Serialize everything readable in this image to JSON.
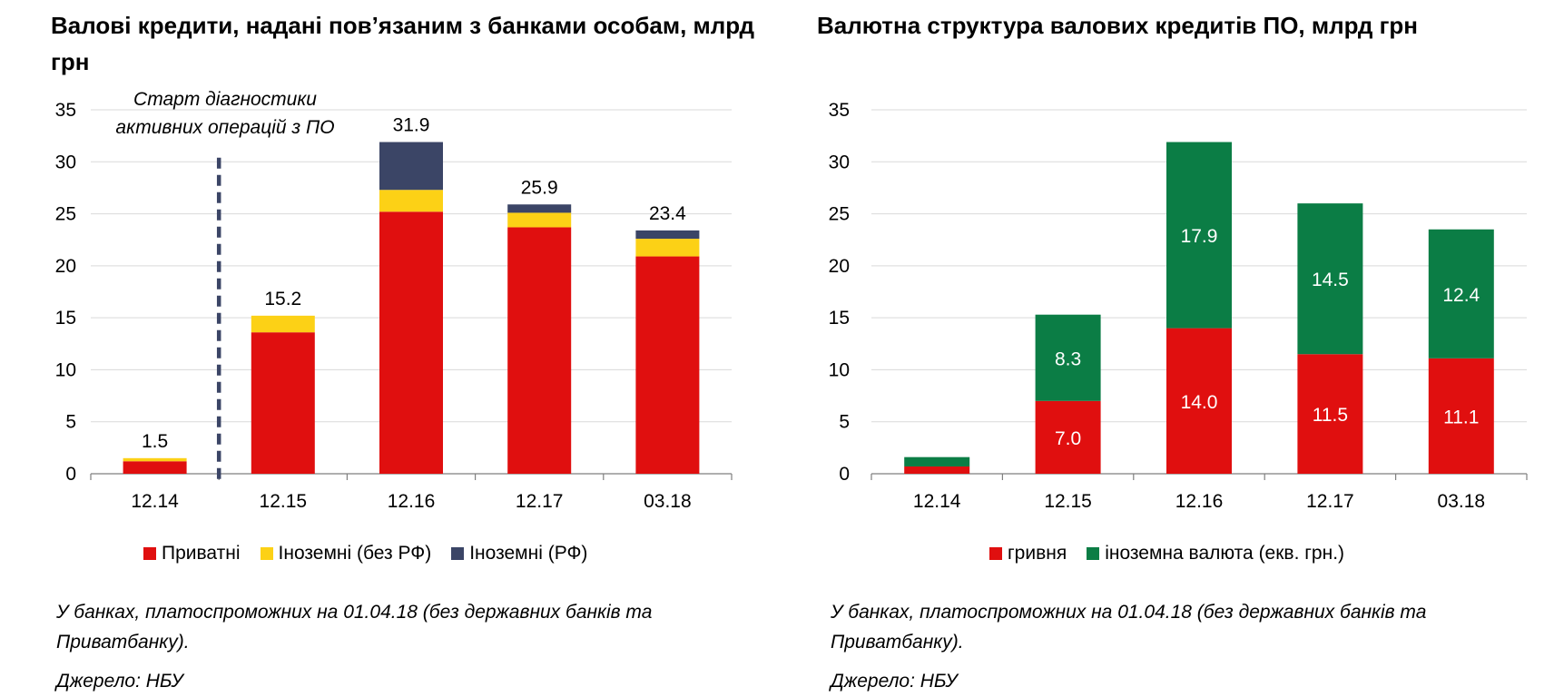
{
  "colors": {
    "red": "#e00f0f",
    "yellow": "#fcd116",
    "navy": "#3b4566",
    "green": "#0b7d45",
    "grid": "#d9d9d9",
    "axis": "#7f7f7f"
  },
  "left": {
    "title": "Валові кредити, надані пов’язаним з банками особам, млрд грн",
    "annotation": "Старт діагностики активних операцій з ПО",
    "note": "У банках, платоспроможних на 01.04.18 (без державних банків та Приватбанку).",
    "source": "Джерело: НБУ",
    "legend": [
      {
        "label": "Приватні",
        "color": "#e00f0f"
      },
      {
        "label": "Іноземні (без РФ)",
        "color": "#fcd116"
      },
      {
        "label": "Іноземні (РФ)",
        "color": "#3b4566"
      }
    ]
  },
  "right": {
    "title": "Валютна структура валових кредитів ПО, млрд грн",
    "note": "У банках, платоспроможних на 01.04.18 (без державних банків та Приватбанку).",
    "source": "Джерело: НБУ",
    "legend": [
      {
        "label": "гривня",
        "color": "#e00f0f"
      },
      {
        "label": "іноземна валюта (екв. грн.)",
        "color": "#0b7d45"
      }
    ]
  },
  "chart_data": [
    {
      "type": "bar",
      "stacked": true,
      "title": "Валові кредити, надані пов’язаним з банками особам, млрд грн",
      "categories": [
        "12.14",
        "12.15",
        "12.16",
        "12.17",
        "03.18"
      ],
      "series": [
        {
          "name": "Приватні",
          "values": [
            1.2,
            13.6,
            25.2,
            23.7,
            20.9
          ]
        },
        {
          "name": "Іноземні (без РФ)",
          "values": [
            0.3,
            1.6,
            2.1,
            1.4,
            1.7
          ]
        },
        {
          "name": "Іноземні (РФ)",
          "values": [
            0.0,
            0.0,
            4.6,
            0.8,
            0.8
          ]
        }
      ],
      "totals": [
        "1.5",
        "15.2",
        "31.9",
        "25.9",
        "23.4"
      ],
      "ylim": [
        0,
        35
      ],
      "yticks": [
        0,
        5,
        10,
        15,
        20,
        25,
        30,
        35
      ],
      "grid": true,
      "legend_position": "bottom",
      "marker_between": [
        "12.14",
        "12.15"
      ]
    },
    {
      "type": "bar",
      "stacked": true,
      "title": "Валютна структура валових кредитів ПО, млрд грн",
      "categories": [
        "12.14",
        "12.15",
        "12.16",
        "12.17",
        "03.18"
      ],
      "series": [
        {
          "name": "гривня",
          "values": [
            0.7,
            7.0,
            14.0,
            11.5,
            11.1
          ],
          "labels": [
            "",
            "7.0",
            "14.0",
            "11.5",
            "11.1"
          ]
        },
        {
          "name": "іноземна валюта (екв. грн.)",
          "values": [
            0.9,
            8.3,
            17.9,
            14.5,
            12.4
          ],
          "labels": [
            "",
            "8.3",
            "17.9",
            "14.5",
            "12.4"
          ]
        }
      ],
      "ylim": [
        0,
        35
      ],
      "yticks": [
        0,
        5,
        10,
        15,
        20,
        25,
        30,
        35
      ],
      "grid": true,
      "legend_position": "bottom"
    }
  ]
}
